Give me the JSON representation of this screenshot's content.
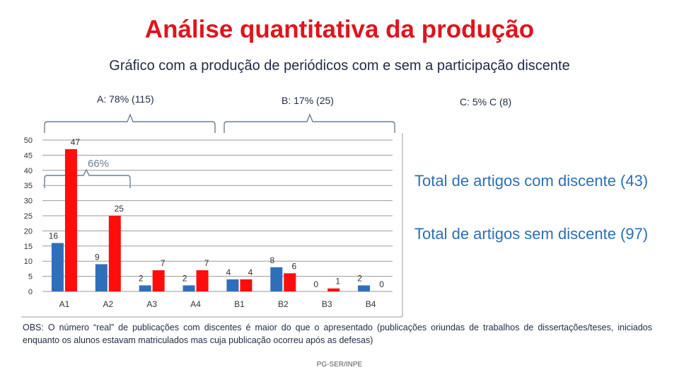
{
  "title": "Análise quantitativa da produção",
  "subtitle": "Gráfico com a produção de periódicos com e sem a participação discente",
  "groups": [
    {
      "label": "A: 78% (115)"
    },
    {
      "label": "B: 17% (25)"
    },
    {
      "label": "C: 5% C (8)"
    }
  ],
  "annotation": "66%",
  "callouts": [
    "Total de artigos com discente (43)",
    "Total de artigos sem discente (97)"
  ],
  "obs": "OBS: O número “real” de publicações com discentes é maior do que o apresentado (publicações oriundas de trabalhos de dissertações/teses, iniciados enquanto os alunos estavam matriculados mas cuja publicação ocorreu após as defesas)",
  "footer": "PG-SER/INPE",
  "colors": {
    "title": "#e0141e",
    "series_blue": "#2f6fba",
    "series_red": "#ff0d0d",
    "callout": "#2b6fb3"
  },
  "chart_data": {
    "type": "bar",
    "categories": [
      "A1",
      "A2",
      "A3",
      "A4",
      "B1",
      "B2",
      "B3",
      "B4"
    ],
    "series": [
      {
        "values": [
          16,
          9,
          2,
          2,
          4,
          8,
          0,
          2
        ]
      },
      {
        "values": [
          47,
          25,
          7,
          7,
          4,
          6,
          1,
          0
        ]
      }
    ],
    "ylim": [
      0,
      50
    ],
    "yticks": [
      0,
      5,
      10,
      15,
      20,
      25,
      30,
      35,
      40,
      45,
      50
    ],
    "grid": true,
    "legend": "none"
  }
}
